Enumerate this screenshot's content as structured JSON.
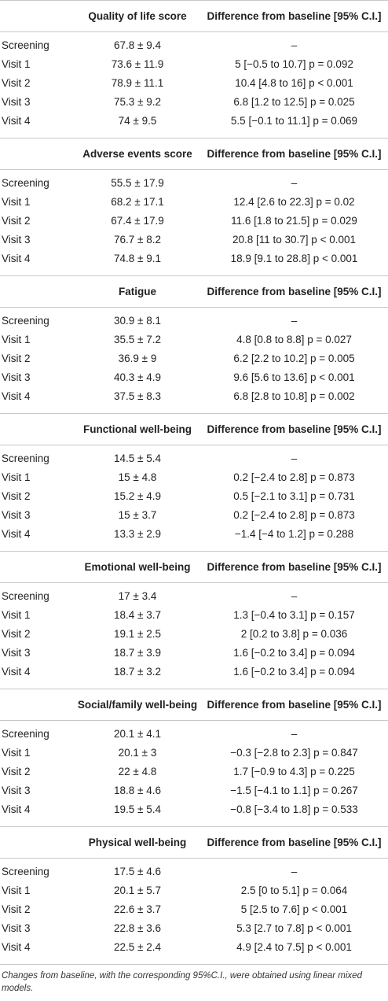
{
  "sections": [
    {
      "title": "Quality of life score",
      "diff_header": "Difference from baseline [95% C.I.]",
      "rows": [
        [
          "Screening",
          "67.8 ± 9.4",
          "–"
        ],
        [
          "Visit 1",
          "73.6 ± 11.9",
          "5 [−0.5 to 10.7] p = 0.092"
        ],
        [
          "Visit 2",
          "78.9 ± 11.1",
          "10.4 [4.8 to 16] p < 0.001"
        ],
        [
          "Visit 3",
          "75.3 ± 9.2",
          "6.8 [1.2 to 12.5] p = 0.025"
        ],
        [
          "Visit 4",
          "74 ± 9.5",
          "5.5 [−0.1 to 11.1] p = 0.069"
        ]
      ]
    },
    {
      "title": "Adverse events score",
      "diff_header": "Difference from baseline [95% C.I.]",
      "rows": [
        [
          "Screening",
          "55.5 ± 17.9",
          "–"
        ],
        [
          "Visit 1",
          "68.2 ± 17.1",
          "12.4 [2.6 to 22.3] p = 0.02"
        ],
        [
          "Visit 2",
          "67.4 ± 17.9",
          "11.6 [1.8 to 21.5] p = 0.029"
        ],
        [
          "Visit 3",
          "76.7 ± 8.2",
          "20.8 [11 to 30.7] p < 0.001"
        ],
        [
          "Visit 4",
          "74.8 ± 9.1",
          "18.9 [9.1 to 28.8] p < 0.001"
        ]
      ]
    },
    {
      "title": "Fatigue",
      "diff_header": "Difference from baseline [95% C.I.]",
      "rows": [
        [
          "Screening",
          "30.9 ± 8.1",
          "–"
        ],
        [
          "Visit 1",
          "35.5 ± 7.2",
          "4.8 [0.8 to 8.8] p = 0.027"
        ],
        [
          "Visit 2",
          "36.9 ± 9",
          "6.2 [2.2 to 10.2] p = 0.005"
        ],
        [
          "Visit 3",
          "40.3 ± 4.9",
          "9.6 [5.6 to 13.6] p < 0.001"
        ],
        [
          "Visit 4",
          "37.5 ± 8.3",
          "6.8 [2.8 to 10.8] p = 0.002"
        ]
      ]
    },
    {
      "title": "Functional well-being",
      "diff_header": "Difference from baseline [95% C.I.]",
      "rows": [
        [
          "Screening",
          "14.5 ± 5.4",
          "–"
        ],
        [
          "Visit 1",
          "15 ± 4.8",
          "0.2 [−2.4 to 2.8] p = 0.873"
        ],
        [
          "Visit 2",
          "15.2 ± 4.9",
          "0.5 [−2.1 to 3.1] p = 0.731"
        ],
        [
          "Visit 3",
          "15 ± 3.7",
          "0.2 [−2.4 to 2.8] p = 0.873"
        ],
        [
          "Visit 4",
          "13.3 ± 2.9",
          "−1.4 [−4 to 1.2] p = 0.288"
        ]
      ]
    },
    {
      "title": "Emotional well-being",
      "diff_header": "Difference from baseline [95% C.I.]",
      "rows": [
        [
          "Screening",
          "17 ± 3.4",
          "–"
        ],
        [
          "Visit 1",
          "18.4 ± 3.7",
          "1.3 [−0.4 to 3.1] p = 0.157"
        ],
        [
          "Visit 2",
          "19.1 ± 2.5",
          "2 [0.2 to 3.8] p = 0.036"
        ],
        [
          "Visit 3",
          "18.7 ± 3.9",
          "1.6 [−0.2 to 3.4] p = 0.094"
        ],
        [
          "Visit 4",
          "18.7 ± 3.2",
          "1.6 [−0.2 to 3.4] p = 0.094"
        ]
      ]
    },
    {
      "title": "Social/family well-being",
      "diff_header": "Difference from baseline [95% C.I.]",
      "rows": [
        [
          "Screening",
          "20.1 ± 4.1",
          "–"
        ],
        [
          "Visit 1",
          "20.1 ± 3",
          "−0.3 [−2.8 to 2.3] p = 0.847"
        ],
        [
          "Visit 2",
          "22 ± 4.8",
          "1.7 [−0.9 to 4.3] p = 0.225"
        ],
        [
          "Visit 3",
          "18.8 ± 4.6",
          "−1.5 [−4.1 to 1.1] p = 0.267"
        ],
        [
          "Visit 4",
          "19.5 ± 5.4",
          "−0.8 [−3.4 to 1.8] p = 0.533"
        ]
      ]
    },
    {
      "title": "Physical well-being",
      "diff_header": "Difference from baseline [95% C.I.]",
      "rows": [
        [
          "Screening",
          "17.5 ± 4.6",
          "–"
        ],
        [
          "Visit 1",
          "20.1 ± 5.7",
          "2.5 [0 to 5.1] p = 0.064"
        ],
        [
          "Visit 2",
          "22.6 ± 3.7",
          "5 [2.5 to 7.6] p < 0.001"
        ],
        [
          "Visit 3",
          "22.8 ± 3.6",
          "5.3 [2.7 to 7.8] p < 0.001"
        ],
        [
          "Visit 4",
          "22.5 ± 2.4",
          "4.9 [2.4 to 7.5] p < 0.001"
        ]
      ]
    }
  ],
  "footnote": "Changes from baseline, with the corresponding 95%C.I., were obtained using linear mixed models."
}
